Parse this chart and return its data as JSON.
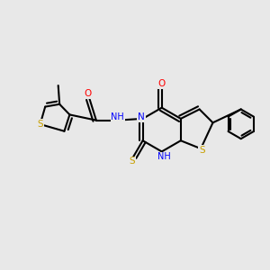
{
  "background_color": "#e8e8e8",
  "bond_color": "#000000",
  "atom_colors": {
    "S": "#c8a000",
    "N": "#0000ff",
    "O": "#ff0000",
    "C": "#000000",
    "H": "#808080"
  },
  "figsize": [
    3.0,
    3.0
  ],
  "dpi": 100,
  "lw": 1.5,
  "fontsize": 7.5
}
